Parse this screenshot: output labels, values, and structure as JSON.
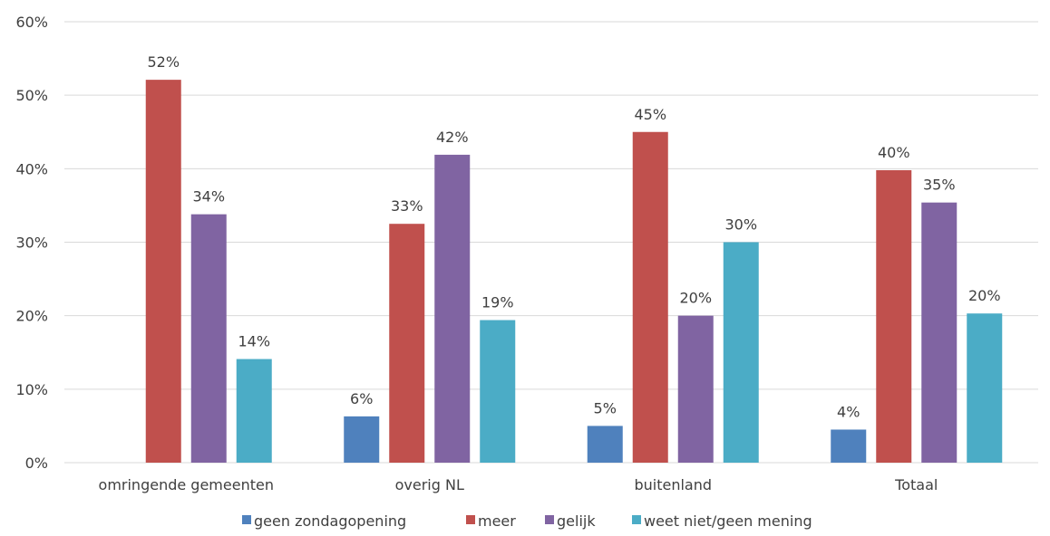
{
  "chart_data": {
    "type": "bar",
    "categories": [
      "omringende gemeenten",
      "overig NL",
      "buitenland",
      "Totaal"
    ],
    "series": [
      {
        "name": "geen zondagopening",
        "color": "#4f81bd",
        "values": [
          null,
          6.3,
          5.0,
          4.5
        ],
        "labels": [
          "",
          "6%",
          "5%",
          "4%"
        ]
      },
      {
        "name": "meer",
        "color": "#c0504d",
        "values": [
          52.1,
          32.5,
          45.0,
          39.8
        ],
        "labels": [
          "52%",
          "33%",
          "45%",
          "40%"
        ]
      },
      {
        "name": "gelijk",
        "color": "#8064a2",
        "values": [
          33.8,
          41.9,
          20.0,
          35.4
        ],
        "labels": [
          "34%",
          "42%",
          "20%",
          "35%"
        ]
      },
      {
        "name": "weet niet/geen mening",
        "color": "#4bacc6",
        "values": [
          14.1,
          19.4,
          30.0,
          20.3
        ],
        "labels": [
          "14%",
          "19%",
          "30%",
          "20%"
        ]
      }
    ],
    "y_ticks": [
      "0%",
      "10%",
      "20%",
      "30%",
      "40%",
      "50%",
      "60%"
    ],
    "ylim": [
      0,
      60
    ],
    "grid": true,
    "legend_position": "bottom"
  }
}
